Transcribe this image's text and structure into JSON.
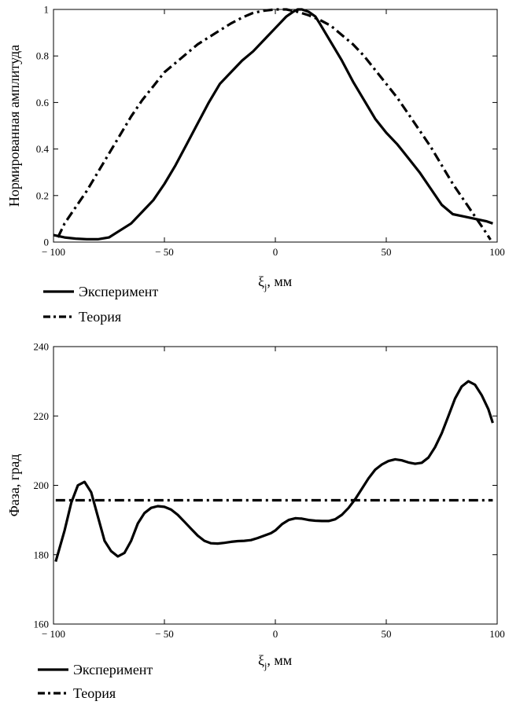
{
  "chart_data": [
    {
      "type": "line",
      "ylabel": "Нормированная амплитуда",
      "xlabel": "ξj , мм",
      "xlabel_main": "ξ",
      "xlabel_sub": "j",
      "xlabel_unit": ", мм",
      "xlim": [
        -100,
        100
      ],
      "ylim": [
        0,
        1
      ],
      "xticks": [
        -100,
        -50,
        0,
        50,
        100
      ],
      "xtick_labels": [
        "− 100",
        "− 50",
        "0",
        "50",
        "100"
      ],
      "yticks": [
        0,
        0.2,
        0.4,
        0.6,
        0.8,
        1
      ],
      "ytick_labels": [
        "0",
        "0.2",
        "0.4",
        "0.6",
        "0.8",
        "1"
      ],
      "grid": false,
      "legend_position": "bottom-left, below plot",
      "series": [
        {
          "name": "Эксперимент",
          "style": "solid",
          "x": [
            -100,
            -95,
            -90,
            -85,
            -80,
            -75,
            -70,
            -65,
            -60,
            -55,
            -50,
            -45,
            -40,
            -35,
            -30,
            -25,
            -20,
            -15,
            -10,
            -5,
            0,
            5,
            8,
            10,
            12,
            15,
            18,
            20,
            25,
            30,
            35,
            40,
            45,
            50,
            55,
            60,
            65,
            70,
            75,
            80,
            85,
            90,
            95,
            98
          ],
          "y": [
            0.03,
            0.02,
            0.015,
            0.012,
            0.012,
            0.02,
            0.05,
            0.08,
            0.13,
            0.18,
            0.25,
            0.33,
            0.42,
            0.51,
            0.6,
            0.68,
            0.73,
            0.78,
            0.82,
            0.87,
            0.92,
            0.97,
            0.99,
            1.0,
            1.0,
            0.99,
            0.97,
            0.94,
            0.86,
            0.78,
            0.69,
            0.61,
            0.53,
            0.47,
            0.42,
            0.36,
            0.3,
            0.23,
            0.16,
            0.12,
            0.11,
            0.1,
            0.09,
            0.08
          ]
        },
        {
          "name": "Теория",
          "style": "dash-dot",
          "x": [
            -98,
            -95,
            -90,
            -85,
            -80,
            -75,
            -70,
            -65,
            -60,
            -55,
            -50,
            -45,
            -40,
            -35,
            -30,
            -25,
            -20,
            -15,
            -10,
            -5,
            0,
            5,
            10,
            15,
            20,
            25,
            30,
            35,
            40,
            45,
            50,
            55,
            60,
            65,
            70,
            75,
            80,
            85,
            90,
            95,
            97
          ],
          "y": [
            0.02,
            0.08,
            0.15,
            0.22,
            0.3,
            0.38,
            0.46,
            0.54,
            0.61,
            0.67,
            0.73,
            0.77,
            0.81,
            0.85,
            0.88,
            0.91,
            0.94,
            0.965,
            0.985,
            0.995,
            1.0,
            1.0,
            0.99,
            0.975,
            0.955,
            0.93,
            0.89,
            0.85,
            0.8,
            0.74,
            0.68,
            0.62,
            0.55,
            0.48,
            0.41,
            0.33,
            0.25,
            0.18,
            0.11,
            0.04,
            0.01
          ]
        }
      ]
    },
    {
      "type": "line",
      "ylabel": "Фаза, град",
      "xlabel": "ξj , мм",
      "xlabel_main": "ξ",
      "xlabel_sub": "j",
      "xlabel_unit": ", мм",
      "xlim": [
        -100,
        100
      ],
      "ylim": [
        160,
        240
      ],
      "xticks": [
        -100,
        -50,
        0,
        50,
        100
      ],
      "xtick_labels": [
        "− 100",
        "− 50",
        "0",
        "50",
        "100"
      ],
      "yticks": [
        160,
        180,
        200,
        220,
        240
      ],
      "ytick_labels": [
        "160",
        "180",
        "200",
        "220",
        "240"
      ],
      "grid": false,
      "legend_position": "bottom-left, below plot",
      "series": [
        {
          "name": "Эксперимент",
          "style": "solid",
          "x": [
            -99,
            -95,
            -92,
            -89,
            -86,
            -83,
            -80,
            -77,
            -74,
            -71,
            -68,
            -65,
            -62,
            -59,
            -56,
            -53,
            -50,
            -47,
            -44,
            -41,
            -38,
            -35,
            -32,
            -29,
            -26,
            -23,
            -20,
            -17,
            -14,
            -11,
            -8,
            -5,
            -2,
            0,
            3,
            6,
            9,
            12,
            15,
            18,
            21,
            24,
            27,
            30,
            33,
            36,
            39,
            42,
            45,
            48,
            51,
            54,
            57,
            60,
            63,
            66,
            69,
            72,
            75,
            78,
            81,
            84,
            87,
            90,
            93,
            96,
            98
          ],
          "y": [
            178,
            187,
            195,
            200,
            201,
            198,
            191,
            184,
            181,
            179.5,
            180.5,
            184,
            189,
            192,
            193.5,
            194,
            193.8,
            193,
            191.5,
            189.5,
            187.5,
            185.5,
            184,
            183.3,
            183.2,
            183.4,
            183.7,
            183.9,
            184,
            184.2,
            184.8,
            185.5,
            186.2,
            187,
            188.8,
            190,
            190.5,
            190.4,
            190,
            189.8,
            189.7,
            189.7,
            190.2,
            191.5,
            193.5,
            196,
            199,
            202,
            204.5,
            206,
            207,
            207.5,
            207.2,
            206.6,
            206.2,
            206.5,
            208,
            211,
            215,
            220,
            225,
            228.5,
            230,
            229,
            226,
            222,
            218
          ]
        },
        {
          "name": "Теория",
          "style": "dash-dot",
          "x": [
            -99,
            98
          ],
          "y": [
            195.7,
            195.7
          ]
        }
      ]
    }
  ]
}
